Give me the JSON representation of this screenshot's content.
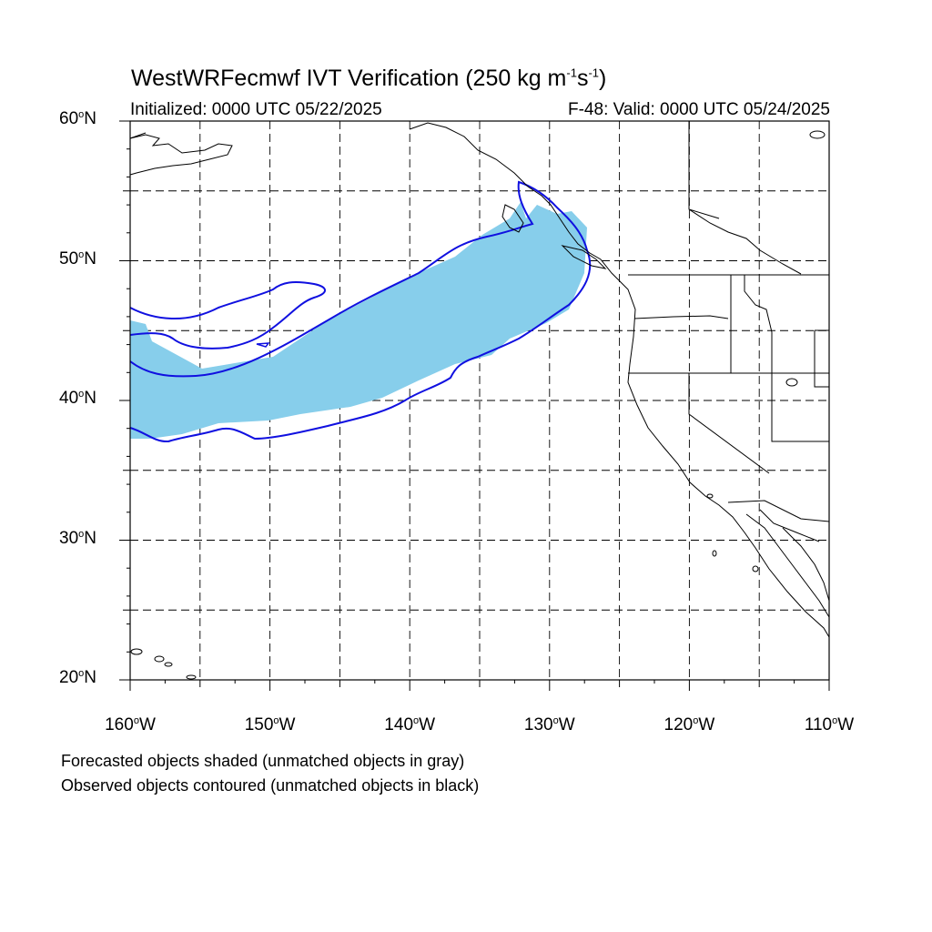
{
  "title": {
    "prefix": "WestWRFecmwf IVT Verification (250 kg m",
    "exp1": "-1",
    "mid": "s",
    "exp2": "-1",
    "suffix": ")"
  },
  "subtitle_left": "Initialized: 0000 UTC 05/22/2025",
  "subtitle_right": "F-48: Valid: 0000 UTC 05/24/2025",
  "notes": [
    "Forecasted objects shaded (unmatched objects in gray)",
    "Observed objects contoured (unmatched objects in black)"
  ],
  "map": {
    "lon_range": [
      -160,
      -110
    ],
    "lat_range": [
      20,
      60
    ],
    "lat_labels": [
      {
        "lat": 60,
        "text": "60",
        "hemi": "N"
      },
      {
        "lat": 50,
        "text": "50",
        "hemi": "N"
      },
      {
        "lat": 40,
        "text": "40",
        "hemi": "N"
      },
      {
        "lat": 30,
        "text": "30",
        "hemi": "N"
      },
      {
        "lat": 20,
        "text": "20",
        "hemi": "N"
      }
    ],
    "lon_labels": [
      {
        "lon": -160,
        "text": "160",
        "hemi": "W"
      },
      {
        "lon": -150,
        "text": "150",
        "hemi": "W"
      },
      {
        "lon": -140,
        "text": "140",
        "hemi": "W"
      },
      {
        "lon": -130,
        "text": "130",
        "hemi": "W"
      },
      {
        "lon": -120,
        "text": "120",
        "hemi": "W"
      },
      {
        "lon": -110,
        "text": "110",
        "hemi": "W"
      }
    ],
    "grid_lats": [
      25,
      30,
      35,
      40,
      45,
      50,
      55
    ],
    "grid_lons": [
      -155,
      -150,
      -145,
      -140,
      -135,
      -130,
      -125,
      -120,
      -115
    ],
    "forecast_color": "#87ceeb",
    "observed_color": "#1010e0",
    "coast_color": "#000000"
  }
}
